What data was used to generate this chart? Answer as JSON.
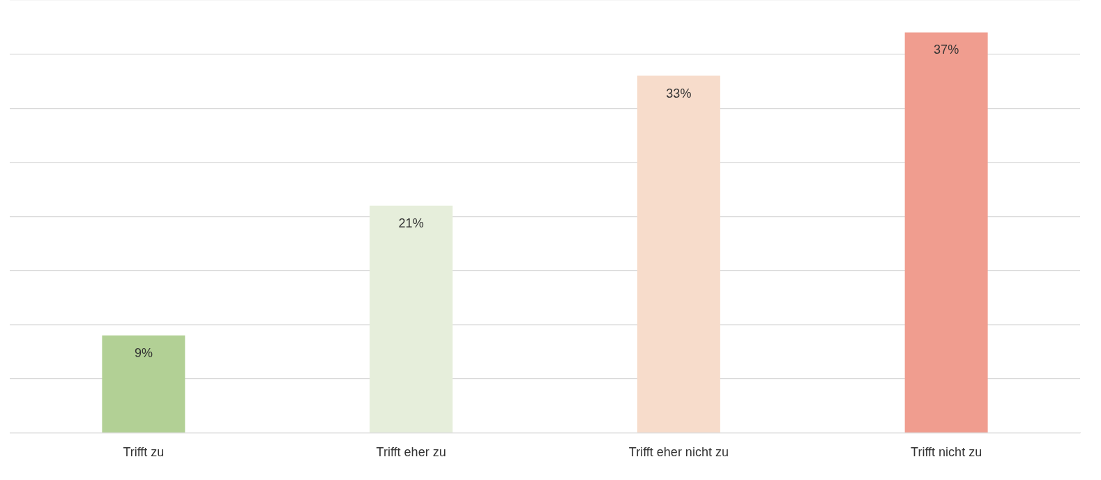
{
  "chart_data": {
    "type": "bar",
    "categories": [
      "Trifft zu",
      "Trifft eher zu",
      "Trifft eher nicht zu",
      "Trifft nicht zu"
    ],
    "values": [
      9,
      21,
      33,
      37
    ],
    "colors": [
      "#b2d095",
      "#e6eedb",
      "#f7dccb",
      "#f09d8f"
    ],
    "ylim": [
      0,
      40
    ],
    "yticks": [
      {
        "value": 0,
        "label": null
      },
      {
        "value": 5,
        "label": null
      },
      {
        "value": 10,
        "label": null
      },
      {
        "value": 15,
        "label": null
      },
      {
        "value": 20,
        "label": null
      },
      {
        "value": 25,
        "label": null
      },
      {
        "value": 30,
        "label": null
      },
      {
        "value": 35,
        "label": null
      },
      {
        "value": 40,
        "label": null
      }
    ],
    "value_labels": [
      "9%",
      "21%",
      "33%",
      "37%"
    ],
    "grid": "y",
    "tick_labels": "x",
    "legend": false
  }
}
